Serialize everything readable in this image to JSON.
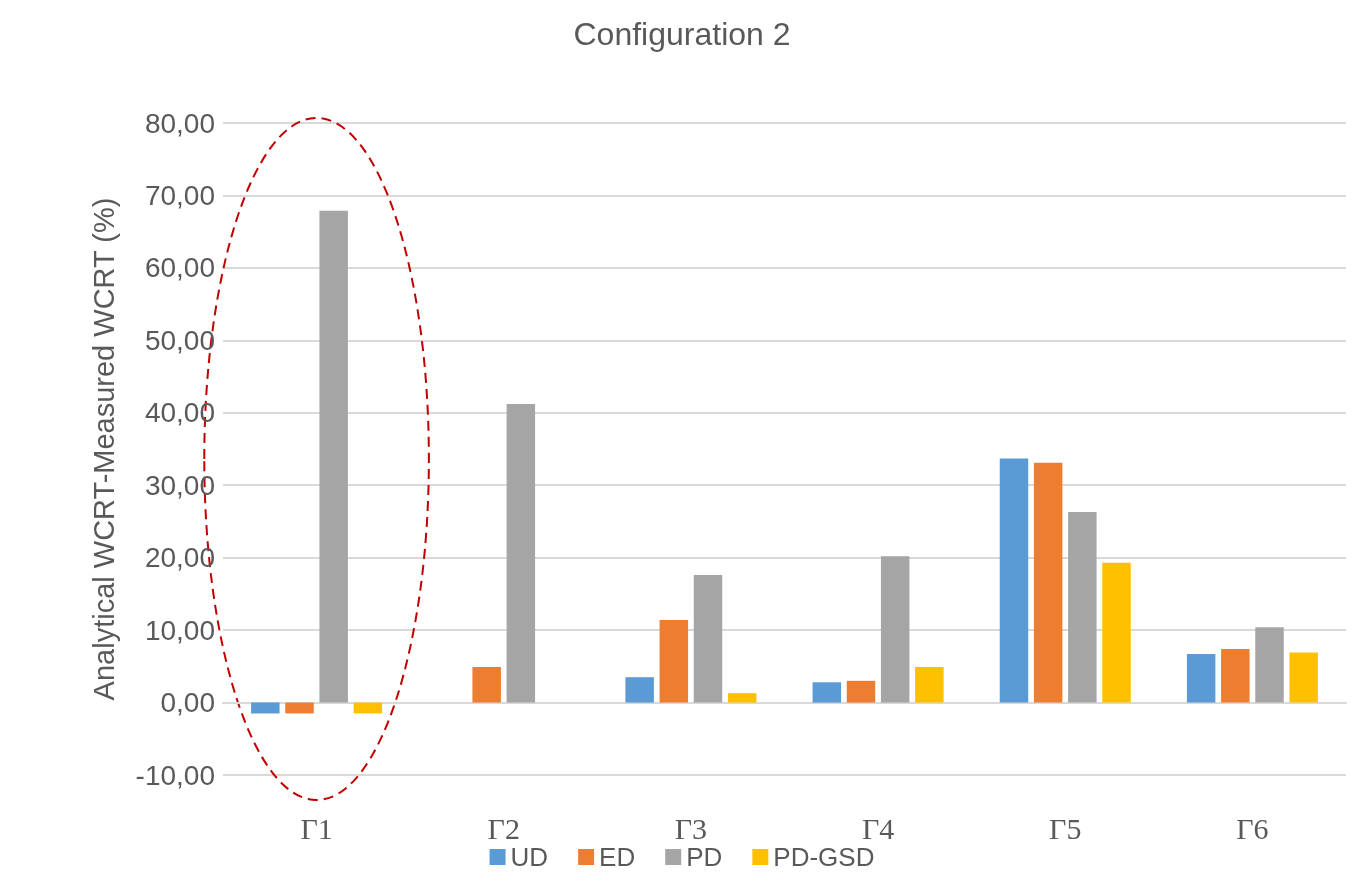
{
  "chart_data": {
    "type": "bar",
    "title": "Configuration 2",
    "ylabel": "Analytical WCRT-Measured WCRT (%)",
    "categories": [
      "Γ1",
      "Γ2",
      "Γ3",
      "Γ4",
      "Γ5",
      "Γ6"
    ],
    "series": [
      {
        "name": "UD",
        "color": "#5b9bd5",
        "values": [
          -1.5,
          0,
          3.5,
          2.8,
          33.7,
          6.7
        ]
      },
      {
        "name": "ED",
        "color": "#ed7d31",
        "values": [
          -1.5,
          4.9,
          11.4,
          3.0,
          33.1,
          7.4
        ]
      },
      {
        "name": "PD",
        "color": "#a5a5a5",
        "values": [
          67.9,
          41.2,
          17.6,
          20.2,
          26.3,
          10.4
        ]
      },
      {
        "name": "PD-GSD",
        "color": "#ffc000",
        "values": [
          -1.5,
          0,
          1.3,
          4.9,
          19.3,
          6.9
        ]
      }
    ],
    "ylim": [
      -10,
      80
    ],
    "yticks": [
      {
        "value": -10,
        "label": "-10,00"
      },
      {
        "value": 0,
        "label": "0,00"
      },
      {
        "value": 10,
        "label": "10,00"
      },
      {
        "value": 20,
        "label": "20,00"
      },
      {
        "value": 30,
        "label": "30,00"
      },
      {
        "value": 40,
        "label": "40,00"
      },
      {
        "value": 50,
        "label": "50,00"
      },
      {
        "value": 60,
        "label": "60,00"
      },
      {
        "value": 70,
        "label": "70,00"
      },
      {
        "value": 80,
        "label": "80,00"
      }
    ],
    "grid": "y",
    "legend": "bottom"
  }
}
